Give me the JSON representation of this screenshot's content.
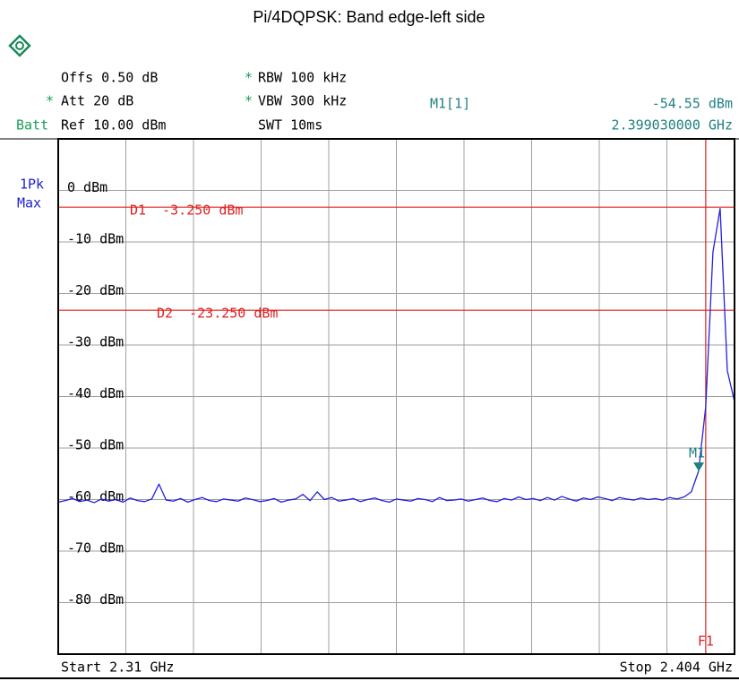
{
  "chart_data": {
    "type": "line",
    "title": "Pi/4DQPSK: Band edge-left side",
    "header": {
      "offs": "Offs 0.50 dB",
      "att_mark": "*",
      "att": "Att 20 dB",
      "batt": "Batt",
      "ref": "Ref 10.00 dBm",
      "rbw_mark": "*",
      "rbw": "RBW 100 kHz",
      "vbw_mark": "*",
      "vbw": "VBW 300 kHz",
      "swt": "SWT 10ms",
      "marker_name": "M1[1]",
      "marker_level": "-54.55 dBm",
      "marker_freq": "2.399030000 GHz",
      "detector": "1Pk",
      "mode": "Max"
    },
    "start_label": "Start 2.31 GHz",
    "stop_label": "Stop 2.404 GHz",
    "color": "#2020e0",
    "xlim": [
      2.31,
      2.404
    ],
    "ylim": [
      -90,
      10
    ],
    "xticks": [
      2.31,
      2.3194,
      2.3288,
      2.3382,
      2.3476,
      2.357,
      2.3664,
      2.3758,
      2.3852,
      2.3946,
      2.404
    ],
    "yticks": [
      {
        "value": 0,
        "label": "0 dBm"
      },
      {
        "value": -10,
        "label": "-10 dBm"
      },
      {
        "value": -20,
        "label": "-20 dBm"
      },
      {
        "value": -30,
        "label": "-30 dBm"
      },
      {
        "value": -40,
        "label": "-40 dBm"
      },
      {
        "value": -50,
        "label": "-50 dBm"
      },
      {
        "value": -60,
        "label": "-60 dBm"
      },
      {
        "value": -70,
        "label": "-70 dBm"
      },
      {
        "value": -80,
        "label": "-80 dBm"
      }
    ],
    "grid": true,
    "thresholds": [
      {
        "label": "D1  -3.250 dBm",
        "value": -3.25,
        "color": "#e02020"
      },
      {
        "label": "D2  -23.250 dBm",
        "value": -23.25,
        "color": "#e02020"
      }
    ],
    "frequency_line": {
      "label": "F1",
      "x": 2.4,
      "color": "#e02020"
    },
    "marker": {
      "label": "M1",
      "x": 2.39903,
      "value": -54.55,
      "color": "#208080"
    },
    "x": [
      2.31,
      2.311,
      2.312,
      2.313,
      2.314,
      2.315,
      2.316,
      2.317,
      2.318,
      2.319,
      2.32,
      2.321,
      2.322,
      2.323,
      2.324,
      2.325,
      2.326,
      2.327,
      2.328,
      2.329,
      2.33,
      2.331,
      2.332,
      2.333,
      2.334,
      2.335,
      2.336,
      2.337,
      2.338,
      2.339,
      2.34,
      2.341,
      2.342,
      2.343,
      2.344,
      2.345,
      2.346,
      2.347,
      2.348,
      2.349,
      2.35,
      2.351,
      2.352,
      2.353,
      2.354,
      2.355,
      2.356,
      2.357,
      2.358,
      2.359,
      2.36,
      2.361,
      2.362,
      2.363,
      2.364,
      2.365,
      2.366,
      2.367,
      2.368,
      2.369,
      2.37,
      2.371,
      2.372,
      2.373,
      2.374,
      2.375,
      2.376,
      2.377,
      2.378,
      2.379,
      2.38,
      2.381,
      2.382,
      2.383,
      2.384,
      2.385,
      2.386,
      2.387,
      2.388,
      2.389,
      2.39,
      2.391,
      2.392,
      2.393,
      2.394,
      2.395,
      2.396,
      2.397,
      2.398,
      2.399,
      2.4,
      2.401,
      2.402,
      2.403,
      2.404
    ],
    "values": [
      -60.5,
      -60.2,
      -59.8,
      -60.4,
      -60.1,
      -60.6,
      -59.9,
      -60.3,
      -60.0,
      -60.5,
      -59.7,
      -60.2,
      -60.4,
      -59.9,
      -57.0,
      -60.1,
      -60.3,
      -59.8,
      -60.5,
      -60.0,
      -59.6,
      -60.2,
      -60.4,
      -59.9,
      -60.1,
      -60.3,
      -59.7,
      -60.0,
      -60.4,
      -60.2,
      -59.8,
      -60.5,
      -60.1,
      -59.9,
      -59.0,
      -60.2,
      -58.5,
      -60.0,
      -59.6,
      -60.3,
      -60.1,
      -59.8,
      -60.4,
      -60.0,
      -59.7,
      -60.2,
      -60.5,
      -59.9,
      -60.1,
      -60.3,
      -59.8,
      -60.0,
      -60.4,
      -59.6,
      -60.2,
      -60.1,
      -59.9,
      -60.3,
      -60.0,
      -59.7,
      -60.2,
      -60.4,
      -59.8,
      -60.1,
      -59.5,
      -60.0,
      -59.8,
      -60.2,
      -59.6,
      -60.1,
      -59.4,
      -59.9,
      -60.3,
      -59.7,
      -60.0,
      -59.5,
      -59.8,
      -60.2,
      -59.6,
      -59.9,
      -60.1,
      -59.7,
      -60.0,
      -59.8,
      -60.1,
      -59.6,
      -59.9,
      -59.5,
      -58.5,
      -54.5,
      -42.0,
      -12.0,
      -3.5,
      -35.0,
      -41.0
    ]
  }
}
